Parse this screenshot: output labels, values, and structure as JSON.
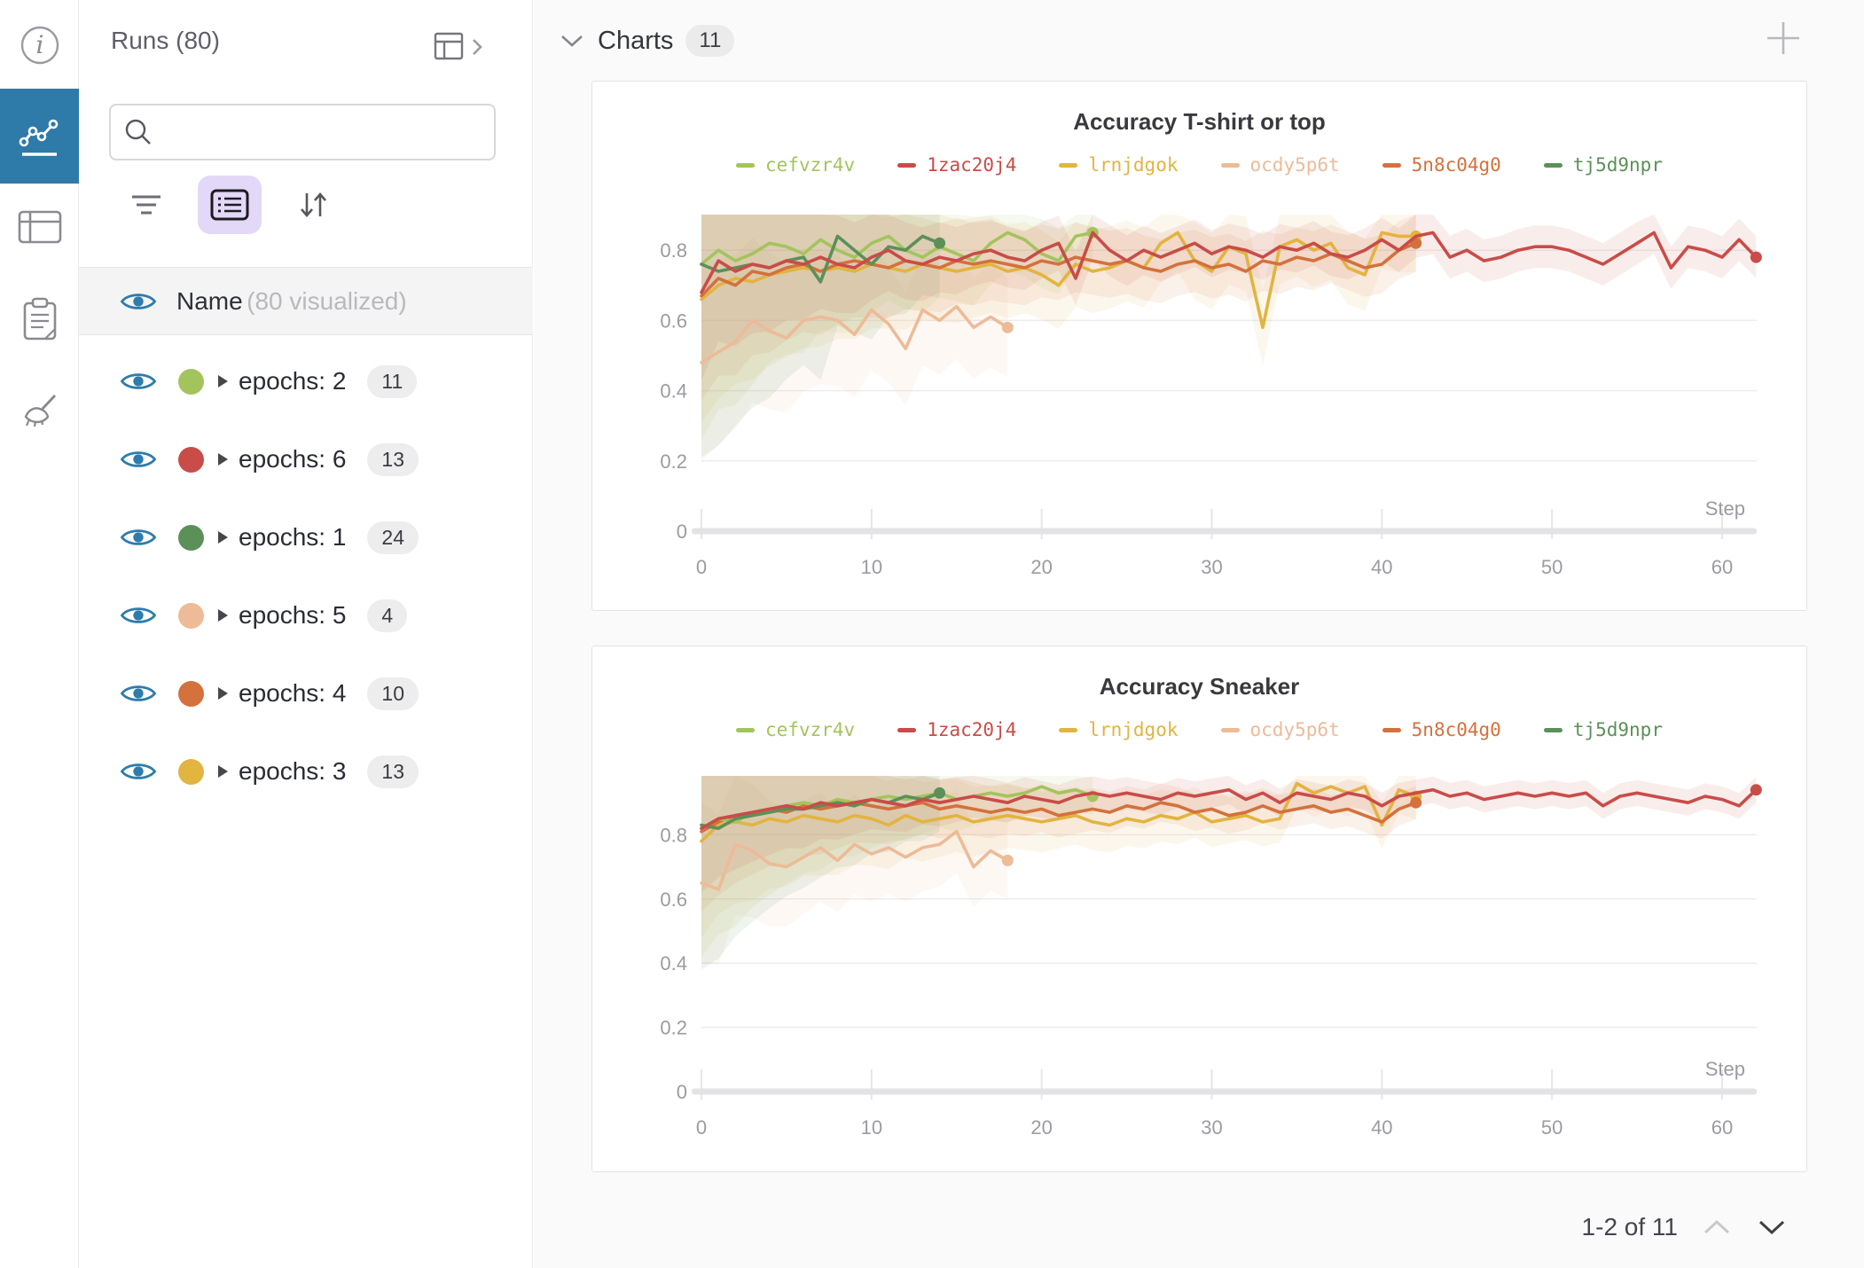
{
  "rail": {
    "icons": [
      {
        "name": "info-icon",
        "active": false
      },
      {
        "name": "line-chart-icon",
        "active": true
      },
      {
        "name": "table-icon",
        "active": false
      },
      {
        "name": "clipboard-icon",
        "active": false
      },
      {
        "name": "broom-icon",
        "active": false
      }
    ]
  },
  "runs_panel": {
    "title": "Runs (80)",
    "search_value": "",
    "visualized_row": {
      "label": "Name",
      "sublabel": "(80 visualized)"
    },
    "groups": [
      {
        "label": "epochs: 2",
        "count": "11",
        "color": "#a3c45c"
      },
      {
        "label": "epochs: 6",
        "count": "13",
        "color": "#c94c48"
      },
      {
        "label": "epochs: 1",
        "count": "24",
        "color": "#5b9059"
      },
      {
        "label": "epochs: 5",
        "count": "4",
        "color": "#edbb98"
      },
      {
        "label": "epochs: 4",
        "count": "10",
        "color": "#d4713c"
      },
      {
        "label": "epochs: 3",
        "count": "13",
        "color": "#e2b440"
      }
    ]
  },
  "main": {
    "section_label": "Charts",
    "section_count": "11",
    "pagination_label": "1-2 of 11"
  },
  "chart_data": [
    {
      "type": "line",
      "title": "Accuracy T-shirt or top",
      "xlabel": "Step",
      "x_ticks": [
        0,
        10,
        20,
        30,
        40,
        50,
        60
      ],
      "y_ticks": [
        0,
        0.2,
        0.4,
        0.6,
        0.8
      ],
      "ylim": [
        0,
        0.94
      ],
      "grid": true,
      "legend_position": "top",
      "series": [
        {
          "name": "cefvzr4v",
          "color": "#a3c45c",
          "band": [
            0.5,
            0.05
          ],
          "values": [
            0.76,
            0.8,
            0.77,
            0.79,
            0.82,
            0.81,
            0.79,
            0.83,
            0.8,
            0.78,
            0.82,
            0.84,
            0.8,
            0.78,
            0.81,
            0.79,
            0.77,
            0.82,
            0.85,
            0.83,
            0.79,
            0.77,
            0.84,
            0.85
          ]
        },
        {
          "name": "1zac20j4",
          "color": "#c94c48",
          "band": [
            0.25,
            0.06
          ],
          "values": [
            0.68,
            0.77,
            0.74,
            0.76,
            0.75,
            0.77,
            0.76,
            0.78,
            0.76,
            0.75,
            0.78,
            0.8,
            0.77,
            0.76,
            0.78,
            0.77,
            0.79,
            0.8,
            0.78,
            0.77,
            0.8,
            0.82,
            0.72,
            0.85,
            0.8,
            0.77,
            0.8,
            0.78,
            0.8,
            0.82,
            0.79,
            0.81,
            0.8,
            0.78,
            0.81,
            0.8,
            0.82,
            0.79,
            0.78,
            0.8,
            0.83,
            0.8,
            0.84,
            0.85,
            0.78,
            0.8,
            0.77,
            0.78,
            0.8,
            0.81,
            0.81,
            0.8,
            0.78,
            0.76,
            0.79,
            0.82,
            0.85,
            0.75,
            0.81,
            0.8,
            0.78,
            0.83,
            0.78
          ]
        },
        {
          "name": "lrnjdgok",
          "color": "#e2b440",
          "band": [
            0.35,
            0.1
          ],
          "values": [
            0.66,
            0.7,
            0.72,
            0.71,
            0.73,
            0.74,
            0.75,
            0.74,
            0.75,
            0.74,
            0.76,
            0.75,
            0.74,
            0.76,
            0.75,
            0.74,
            0.75,
            0.76,
            0.74,
            0.75,
            0.73,
            0.7,
            0.76,
            0.74,
            0.75,
            0.77,
            0.75,
            0.82,
            0.85,
            0.77,
            0.74,
            0.81,
            0.79,
            0.58,
            0.81,
            0.83,
            0.8,
            0.82,
            0.75,
            0.73,
            0.85,
            0.84,
            0.84
          ]
        },
        {
          "name": "ocdy5p6t",
          "color": "#edbb98",
          "band": [
            0.28,
            0.12
          ],
          "values": [
            0.48,
            0.51,
            0.54,
            0.6,
            0.57,
            0.55,
            0.6,
            0.61,
            0.6,
            0.56,
            0.63,
            0.59,
            0.52,
            0.63,
            0.6,
            0.64,
            0.58,
            0.61,
            0.58
          ]
        },
        {
          "name": "5n8c04g0",
          "color": "#d4713c",
          "band": [
            0.3,
            0.08
          ],
          "values": [
            0.67,
            0.72,
            0.7,
            0.74,
            0.73,
            0.75,
            0.76,
            0.74,
            0.76,
            0.77,
            0.76,
            0.75,
            0.77,
            0.76,
            0.75,
            0.77,
            0.76,
            0.77,
            0.76,
            0.75,
            0.77,
            0.76,
            0.78,
            0.77,
            0.76,
            0.77,
            0.75,
            0.74,
            0.76,
            0.77,
            0.75,
            0.76,
            0.74,
            0.77,
            0.76,
            0.78,
            0.77,
            0.79,
            0.77,
            0.75,
            0.76,
            0.8,
            0.82
          ]
        },
        {
          "name": "tj5d9npr",
          "color": "#5b9059",
          "band": [
            0.55,
            0.05
          ],
          "values": [
            0.76,
            0.74,
            0.75,
            0.76,
            0.75,
            0.77,
            0.78,
            0.71,
            0.84,
            0.8,
            0.76,
            0.81,
            0.8,
            0.84,
            0.82
          ]
        }
      ]
    },
    {
      "type": "line",
      "title": "Accuracy Sneaker",
      "xlabel": "Step",
      "x_ticks": [
        0,
        10,
        20,
        30,
        40,
        50,
        60
      ],
      "y_ticks": [
        0,
        0.2,
        0.4,
        0.6,
        0.8
      ],
      "ylim": [
        0,
        0.96
      ],
      "grid": true,
      "legend_position": "top",
      "series": [
        {
          "name": "cefvzr4v",
          "color": "#a3c45c",
          "band": [
            0.4,
            0.03
          ],
          "values": [
            0.82,
            0.85,
            0.84,
            0.87,
            0.88,
            0.89,
            0.9,
            0.89,
            0.91,
            0.9,
            0.91,
            0.92,
            0.91,
            0.92,
            0.93,
            0.91,
            0.92,
            0.93,
            0.92,
            0.93,
            0.95,
            0.93,
            0.94,
            0.92
          ]
        },
        {
          "name": "1zac20j4",
          "color": "#c94c48",
          "band": [
            0.2,
            0.04
          ],
          "values": [
            0.82,
            0.85,
            0.86,
            0.87,
            0.88,
            0.89,
            0.88,
            0.9,
            0.89,
            0.9,
            0.91,
            0.9,
            0.89,
            0.91,
            0.9,
            0.91,
            0.92,
            0.91,
            0.9,
            0.92,
            0.91,
            0.9,
            0.92,
            0.93,
            0.92,
            0.93,
            0.92,
            0.91,
            0.93,
            0.92,
            0.93,
            0.94,
            0.91,
            0.93,
            0.9,
            0.93,
            0.92,
            0.91,
            0.93,
            0.92,
            0.89,
            0.92,
            0.93,
            0.94,
            0.92,
            0.93,
            0.91,
            0.92,
            0.93,
            0.92,
            0.93,
            0.92,
            0.93,
            0.89,
            0.92,
            0.93,
            0.92,
            0.91,
            0.9,
            0.92,
            0.91,
            0.89,
            0.94
          ]
        },
        {
          "name": "lrnjdgok",
          "color": "#e2b440",
          "band": [
            0.3,
            0.07
          ],
          "values": [
            0.78,
            0.83,
            0.84,
            0.83,
            0.85,
            0.84,
            0.86,
            0.85,
            0.84,
            0.86,
            0.85,
            0.83,
            0.86,
            0.84,
            0.85,
            0.86,
            0.84,
            0.85,
            0.86,
            0.85,
            0.84,
            0.85,
            0.86,
            0.84,
            0.83,
            0.85,
            0.84,
            0.86,
            0.85,
            0.87,
            0.84,
            0.85,
            0.86,
            0.84,
            0.85,
            0.96,
            0.93,
            0.95,
            0.93,
            0.95,
            0.83,
            0.94,
            0.92
          ]
        },
        {
          "name": "ocdy5p6t",
          "color": "#edbb98",
          "band": [
            0.25,
            0.1
          ],
          "values": [
            0.65,
            0.63,
            0.77,
            0.75,
            0.71,
            0.7,
            0.73,
            0.76,
            0.72,
            0.77,
            0.74,
            0.76,
            0.73,
            0.76,
            0.77,
            0.81,
            0.7,
            0.75,
            0.72
          ]
        },
        {
          "name": "5n8c04g0",
          "color": "#d4713c",
          "band": [
            0.25,
            0.05
          ],
          "values": [
            0.81,
            0.84,
            0.86,
            0.87,
            0.88,
            0.87,
            0.89,
            0.88,
            0.89,
            0.9,
            0.89,
            0.88,
            0.89,
            0.9,
            0.88,
            0.89,
            0.88,
            0.87,
            0.88,
            0.87,
            0.88,
            0.86,
            0.87,
            0.88,
            0.87,
            0.89,
            0.88,
            0.9,
            0.89,
            0.87,
            0.88,
            0.86,
            0.87,
            0.89,
            0.87,
            0.88,
            0.89,
            0.87,
            0.88,
            0.86,
            0.84,
            0.88,
            0.9
          ]
        },
        {
          "name": "tj5d9npr",
          "color": "#5b9059",
          "band": [
            0.45,
            0.03
          ],
          "values": [
            0.83,
            0.82,
            0.85,
            0.86,
            0.87,
            0.88,
            0.88,
            0.89,
            0.9,
            0.89,
            0.91,
            0.9,
            0.92,
            0.91,
            0.93
          ]
        }
      ]
    }
  ]
}
